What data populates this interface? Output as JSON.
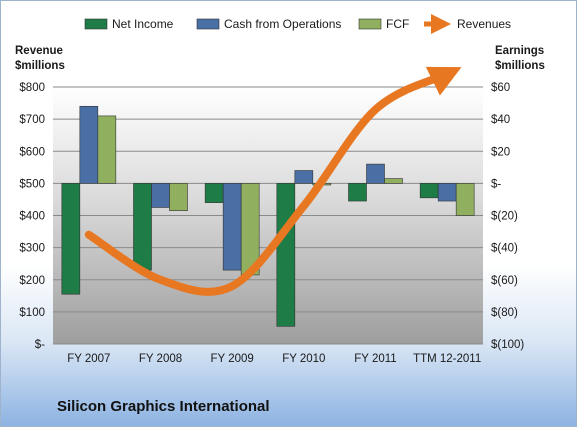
{
  "company_name": "Silicon Graphics International",
  "chart_data": {
    "type": "bar",
    "categories": [
      "FY 2007",
      "FY 2008",
      "FY 2009",
      "FY 2010",
      "FY 2011",
      "TTM 12-2011"
    ],
    "series": [
      {
        "name": "Net Income",
        "axis": "right",
        "color": "#1e7c46",
        "values": [
          -69,
          -54,
          -12,
          -89,
          -11,
          -9
        ]
      },
      {
        "name": "Cash from Operations",
        "axis": "right",
        "color": "#4a6fa5",
        "values": [
          48,
          -15,
          -54,
          8,
          12,
          -11
        ]
      },
      {
        "name": "FCF",
        "axis": "right",
        "color": "#90b060",
        "values": [
          42,
          -17,
          -57,
          -1,
          3,
          -20
        ]
      }
    ],
    "line_series": {
      "name": "Revenues",
      "axis": "left",
      "color": "#e87722",
      "values": [
        340,
        200,
        180,
        430,
        730,
        840
      ]
    },
    "left_axis": {
      "title_lines": [
        "Revenue",
        "$millions"
      ],
      "ylim": [
        0,
        800
      ],
      "tick_values": [
        0,
        100,
        200,
        300,
        400,
        500,
        600,
        700,
        800
      ],
      "tick_labels": [
        "$-",
        "$100",
        "$200",
        "$300",
        "$400",
        "$500",
        "$600",
        "$700",
        "$800"
      ]
    },
    "right_axis": {
      "title_lines": [
        "Earnings",
        "$millions"
      ],
      "ylim": [
        -100,
        60
      ],
      "tick_values": [
        -100,
        -80,
        -60,
        -40,
        -20,
        0,
        20,
        40,
        60
      ],
      "tick_labels": [
        "$(100)",
        "$(80)",
        "$(60)",
        "$(40)",
        "$(20)",
        "$-",
        "$20",
        "$40",
        "$60"
      ]
    },
    "grid": true,
    "legend_position": "top"
  }
}
